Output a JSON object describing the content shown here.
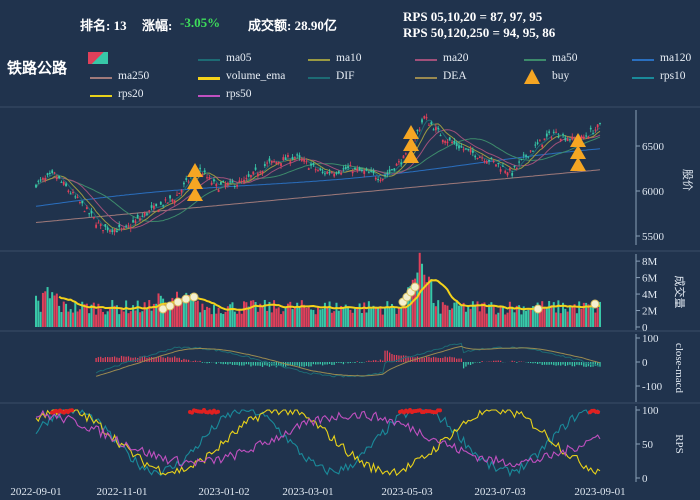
{
  "header": {
    "rank_label": "排名: 13",
    "change_label": "涨幅:",
    "change_value": "-3.05%",
    "amount_label": "成交额: 28.90亿",
    "rps_line1": "RPS 05,10,20 = 87, 97, 95",
    "rps_line2": "RPS 50,120,250 = 94, 95, 86"
  },
  "title": "铁路公路",
  "legend": [
    {
      "label": "ma05",
      "color": "#1d6b74"
    },
    {
      "label": "ma10",
      "color": "#9a9a42"
    },
    {
      "label": "ma20",
      "color": "#a0507a"
    },
    {
      "label": "ma50",
      "color": "#3d8b6b"
    },
    {
      "label": "ma120",
      "color": "#2a6fbf"
    },
    {
      "label": "ma250",
      "color": "#a07a7a"
    },
    {
      "label": "volume_ema",
      "color": "#f4d21a"
    },
    {
      "label": "DIF",
      "color": "#1d6b74"
    },
    {
      "label": "DEA",
      "color": "#9a8a50"
    },
    {
      "label": "buy",
      "color": "#f5a623"
    },
    {
      "label": "rps10",
      "color": "#1a8a9a"
    },
    {
      "label": "rps20",
      "color": "#e8d21a"
    },
    {
      "label": "rps50",
      "color": "#c050c0"
    }
  ],
  "panels": {
    "price": {
      "ylabel": "股价",
      "ticks": [
        "6500",
        "6000",
        "5500"
      ]
    },
    "volume": {
      "ylabel": "成交量",
      "ticks": [
        "8M",
        "6M",
        "4M",
        "2M",
        "0"
      ]
    },
    "macd": {
      "ylabel": "close-macd",
      "ticks": [
        "100",
        "0",
        "-100"
      ]
    },
    "rps": {
      "ylabel": "RPS",
      "ticks": [
        "100",
        "50",
        "0"
      ]
    }
  },
  "x_ticks": [
    "2022-09-01",
    "2022-11-01",
    "2023-01-02",
    "2023-03-01",
    "2023-05-03",
    "2023-07-03",
    "2023-09-01"
  ],
  "colors": {
    "up": "#e0405a",
    "down": "#38c8a8",
    "bg": "#20334d",
    "grid": "#3a4e68"
  }
}
